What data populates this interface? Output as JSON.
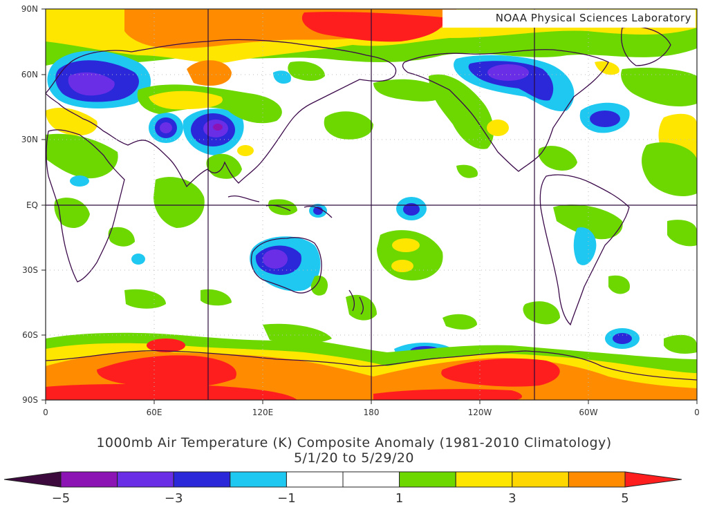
{
  "credit": "NOAA Physical Sciences Laboratory",
  "title_line1": "1000mb Air Temperature (K) Composite Anomaly (1981-2010 Climatology)",
  "title_line2": "5/1/20  to 5/29/20",
  "lat_labels": [
    "90N",
    "60N",
    "30N",
    "EQ",
    "30S",
    "60S",
    "90S"
  ],
  "lon_labels": [
    "0",
    "60E",
    "120E",
    "180",
    "120W",
    "60W",
    "0"
  ],
  "colorbar": {
    "colors": [
      "#3c0a3c",
      "#8c14b4",
      "#6a2ee6",
      "#2a28d8",
      "#1ec8f0",
      "#ffffff",
      "#ffffff",
      "#6cd800",
      "#ffe600",
      "#ffd700",
      "#ff8c00",
      "#ff1e1e"
    ],
    "tick_labels": [
      {
        "bin": 1,
        "text": "−5"
      },
      {
        "bin": 3,
        "text": "−3"
      },
      {
        "bin": 5,
        "text": "−1"
      },
      {
        "bin": 7,
        "text": "1"
      },
      {
        "bin": 9,
        "text": "3"
      },
      {
        "bin": 11,
        "text": "5"
      }
    ]
  },
  "anomaly_colors": {
    "strong_warm": "#ff1e1e",
    "warm": "#ff8c00",
    "mild_warm": "#ffe600",
    "slight_warm": "#6cd800",
    "slight_cold": "#1ec8f0",
    "cold": "#2a28d8",
    "very_cold": "#6a2ee6",
    "extreme_cold": "#8c14b4"
  }
}
